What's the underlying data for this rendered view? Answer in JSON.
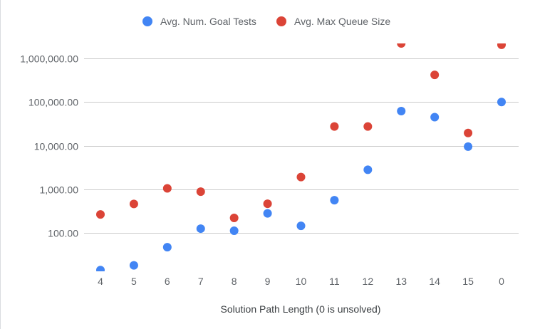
{
  "chart_data": {
    "type": "scatter",
    "title": "",
    "xlabel": "Solution Path Length (0 is unsolved)",
    "ylabel": "",
    "categories": [
      "4",
      "5",
      "6",
      "7",
      "8",
      "9",
      "10",
      "11",
      "12",
      "13",
      "14",
      "15",
      "0"
    ],
    "y_scale": "log",
    "ylim": [
      14,
      2500000
    ],
    "y_ticks": [
      100,
      1000,
      10000,
      100000,
      1000000
    ],
    "y_tick_labels": [
      "100.00",
      "1,000.00",
      "10,000.00",
      "100,000.00",
      "1,000,000.00"
    ],
    "grid": true,
    "legend_position": "top",
    "series": [
      {
        "name": "Avg. Num. Goal Tests",
        "color": "#4285f4",
        "values": [
          14,
          18,
          47,
          125,
          112,
          280,
          145,
          560,
          2800,
          62000,
          45000,
          9500,
          100000
        ]
      },
      {
        "name": "Avg. Max Queue Size",
        "color": "#db4437",
        "values": [
          265,
          460,
          1050,
          880,
          220,
          465,
          1900,
          27500,
          27500,
          2200000,
          420000,
          19500,
          2050000
        ]
      }
    ]
  }
}
